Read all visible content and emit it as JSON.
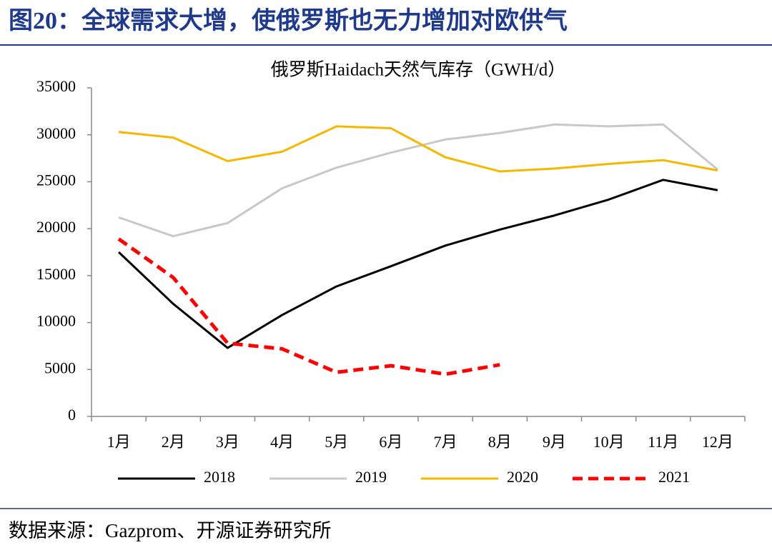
{
  "figure_title": "图20：全球需求大增，使俄罗斯也无力增加对欧供气",
  "source": "数据来源：Gazprom、开源证券研究所",
  "chart_data": {
    "type": "line",
    "title": "俄罗斯Haidach天然气库存（GWH/d）",
    "categories": [
      "1月",
      "2月",
      "3月",
      "4月",
      "5月",
      "6月",
      "7月",
      "8月",
      "9月",
      "10月",
      "11月",
      "12月"
    ],
    "series": [
      {
        "name": "2018",
        "color": "#000000",
        "dashed": false,
        "values": [
          17500,
          12000,
          7300,
          10800,
          13850,
          16000,
          18200,
          19900,
          21400,
          23100,
          25200,
          24100
        ]
      },
      {
        "name": "2019",
        "color": "#c8c8c8",
        "dashed": false,
        "values": [
          21200,
          19200,
          20600,
          24300,
          26500,
          28100,
          29500,
          30200,
          31100,
          30900,
          31100,
          26300
        ]
      },
      {
        "name": "2020",
        "color": "#f5b800",
        "dashed": false,
        "values": [
          30300,
          29700,
          27200,
          28200,
          30900,
          30700,
          27600,
          26100,
          26400,
          26900,
          27300,
          26200
        ]
      },
      {
        "name": "2021",
        "color": "#ff0000",
        "dashed": true,
        "values": [
          18900,
          14800,
          7800,
          7200,
          4700,
          5400,
          4500,
          5500,
          null,
          null,
          null,
          null
        ]
      }
    ],
    "ylim": [
      0,
      35000
    ],
    "yticks": [
      0,
      5000,
      10000,
      15000,
      20000,
      25000,
      30000,
      35000
    ],
    "grid": false
  }
}
